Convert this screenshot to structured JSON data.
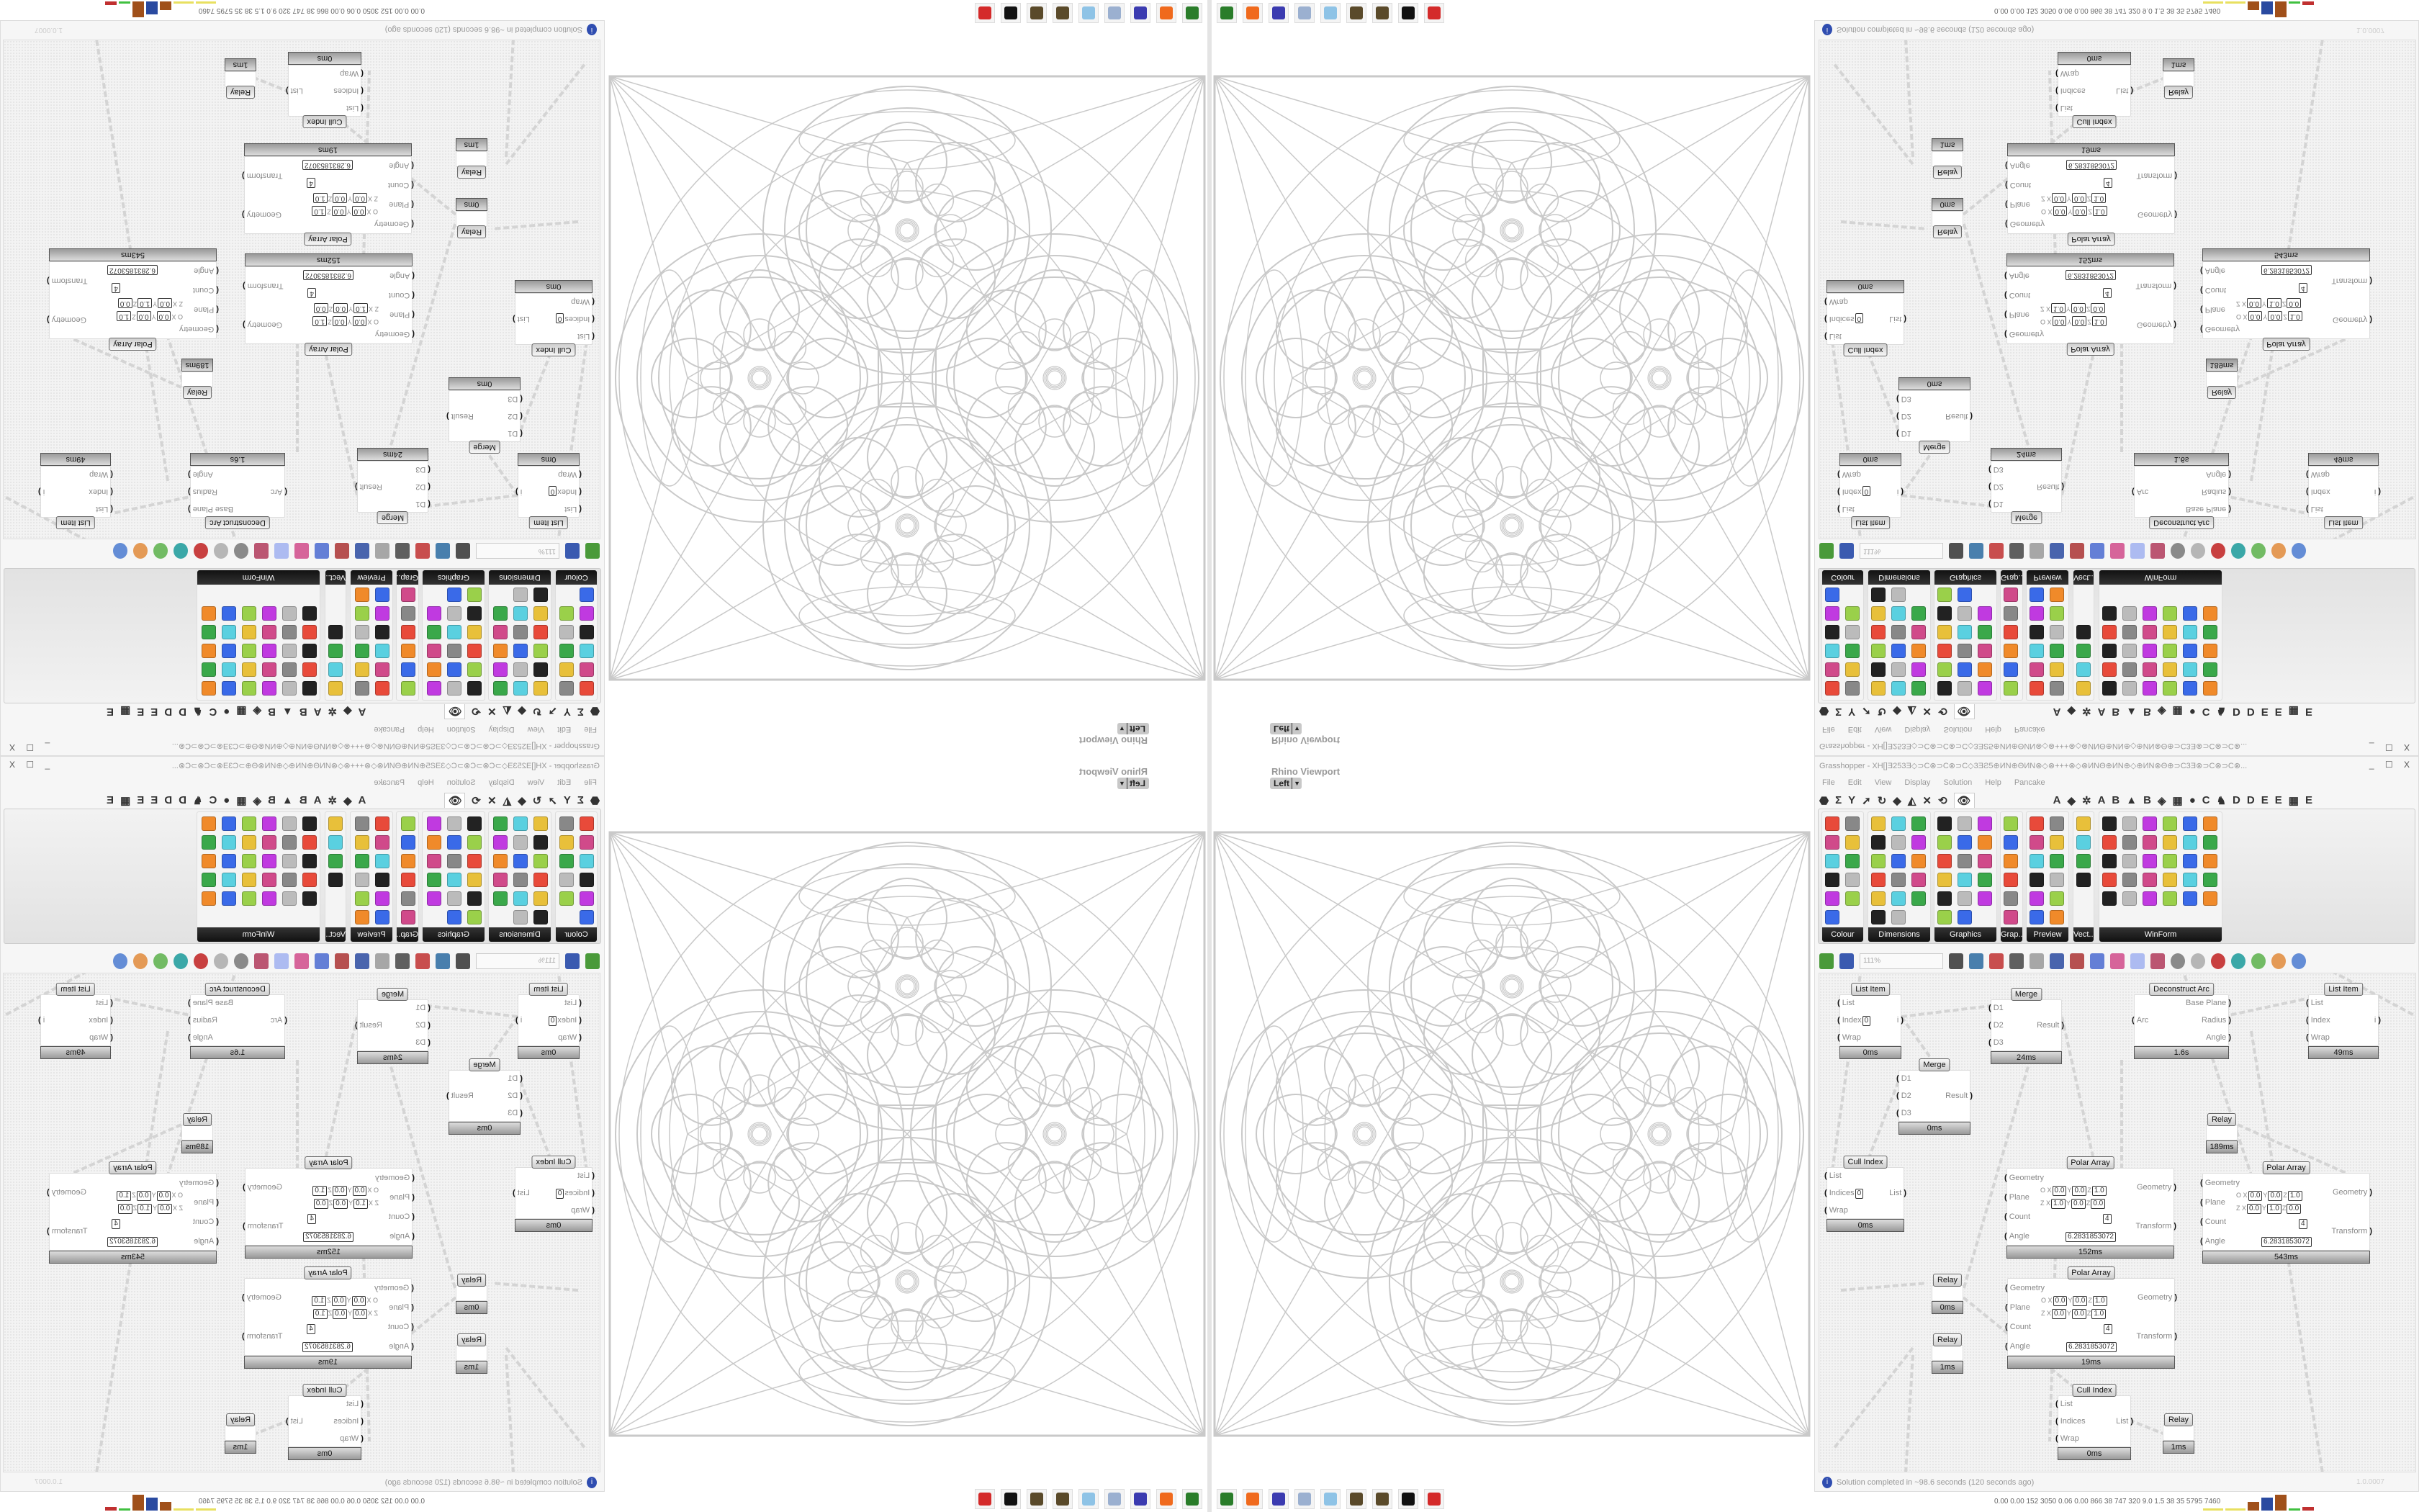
{
  "window": {
    "title": "Grasshopper - XH[]Ǝ253Ǝ◇⊃C⊗⊃C⊗⊃C◇3ƎƧ5⊕ИN⊕ΘИN⊗◇⊗+++⊗◇⊗ИNΘ⊕ИN⊕◇⊕ИN⊗Θ⊕⊃C3Ǝ⊗⊃C⊗⊃C⊗...",
    "controls": "_ ☐ X"
  },
  "menu": [
    "File",
    "Edit",
    "View",
    "Display",
    "Solution",
    "Help",
    "Pancake"
  ],
  "tabs": [
    "⬣",
    "Σ",
    "Y",
    "➚",
    "↻",
    "◆",
    "◭",
    "✕",
    "⟲",
    "👁",
    "A",
    "◆",
    "✲",
    "A",
    "B",
    "▲",
    "B",
    "◈",
    "▦",
    "●",
    "C",
    "♞",
    "D",
    "D",
    "E",
    "E",
    "▦",
    "E"
  ],
  "ribbon_panels": [
    "Colour",
    "Dimensions",
    "Graphics",
    "Grap...",
    "Preview",
    "Vect...",
    "WinForm"
  ],
  "toolbar": {
    "zoom": "111%"
  },
  "viewport": {
    "title": "Rhino Viewport",
    "view": "Left"
  },
  "nodes": [
    {
      "title": "List Item",
      "inputs": [
        "List",
        "Index",
        "Wrap"
      ],
      "index_value": "0",
      "outputs": [
        "i"
      ],
      "time": "0ms"
    },
    {
      "title": "Merge",
      "inputs": [
        "D1",
        "D2",
        "D3"
      ],
      "outputs": [
        "Result"
      ],
      "time": "24ms"
    },
    {
      "title": "Merge",
      "inputs": [
        "D1",
        "D2",
        "D3"
      ],
      "outputs": [
        "Result"
      ],
      "time": "0ms"
    },
    {
      "title": "Cull Index",
      "inputs": [
        "List",
        "Indices",
        "Wrap"
      ],
      "index_value": "0",
      "outputs": [
        "List"
      ],
      "time": "0ms"
    },
    {
      "title": "Polar Array",
      "inputs": [
        "Geometry",
        "Plane",
        "Count",
        "Angle"
      ],
      "outputs": [
        "Geometry",
        "Transform"
      ],
      "plane_o": [
        "0.0",
        "0.0",
        "1.0"
      ],
      "plane_z": [
        "1.0",
        "0.0",
        "0.0"
      ],
      "count": "4",
      "angle": "6.2831853072",
      "time": "152ms"
    },
    {
      "title": "Deconstruct Arc",
      "inputs": [
        "Arc"
      ],
      "outputs": [
        "Base Plane",
        "Radius",
        "Angle"
      ],
      "time": "1.6s"
    },
    {
      "title": "List Item",
      "inputs": [
        "List",
        "Index",
        "Wrap"
      ],
      "outputs": [
        "i"
      ],
      "time": "49ms"
    },
    {
      "title": "Relay",
      "inputs": [],
      "outputs": [],
      "time": "189ms"
    },
    {
      "title": "Polar Array",
      "inputs": [
        "Geometry",
        "Plane",
        "Count",
        "Angle"
      ],
      "outputs": [
        "Geometry",
        "Transform"
      ],
      "plane_o": [
        "0.0",
        "0.0",
        "1.0"
      ],
      "plane_z": [
        "0.0",
        "1.0",
        "0.0"
      ],
      "count": "4",
      "angle": "6.2831853072",
      "time": "543ms"
    },
    {
      "title": "Relay",
      "inputs": [],
      "outputs": [],
      "time": "0ms"
    },
    {
      "title": "Relay",
      "inputs": [],
      "outputs": [],
      "time": "1ms"
    },
    {
      "title": "Polar Array",
      "inputs": [
        "Geometry",
        "Plane",
        "Count",
        "Angle"
      ],
      "outputs": [
        "Geometry",
        "Transform"
      ],
      "plane_o": [
        "0.0",
        "0.0",
        "1.0"
      ],
      "plane_z": [
        "0.0",
        "0.0",
        "1.0"
      ],
      "count": "4",
      "angle": "6.2831853072",
      "time": "19ms"
    },
    {
      "title": "Cull Index",
      "inputs": [
        "List",
        "Indices",
        "Wrap"
      ],
      "outputs": [
        "List"
      ],
      "time": "0ms"
    },
    {
      "title": "Relay",
      "inputs": [],
      "outputs": [],
      "time": "1ms"
    }
  ],
  "status": {
    "message": "Solution completed in ~98.6 seconds (120 seconds ago)",
    "version": "1.0.0007"
  },
  "taskbar": {
    "icons": [
      "terminal-icon",
      "firefox-icon",
      "floppy-64-icon",
      "scroll-icon",
      "notepad-icon",
      "grasshopper-icon",
      "grasshopper-icon",
      "rhino-icon",
      "settings-red-icon"
    ],
    "icon_colors": [
      "#2a7d2a",
      "#f06a1d",
      "#3b3bb0",
      "#9bb0d0",
      "#8ec3e6",
      "#5a4a2a",
      "#5a4a2a",
      "#111111",
      "#d42a2a"
    ],
    "readout": "0.00 0.00 152 3050 0.06 0.00 866 38 747 320 9.0 1.5 38 35 5795 7460"
  }
}
